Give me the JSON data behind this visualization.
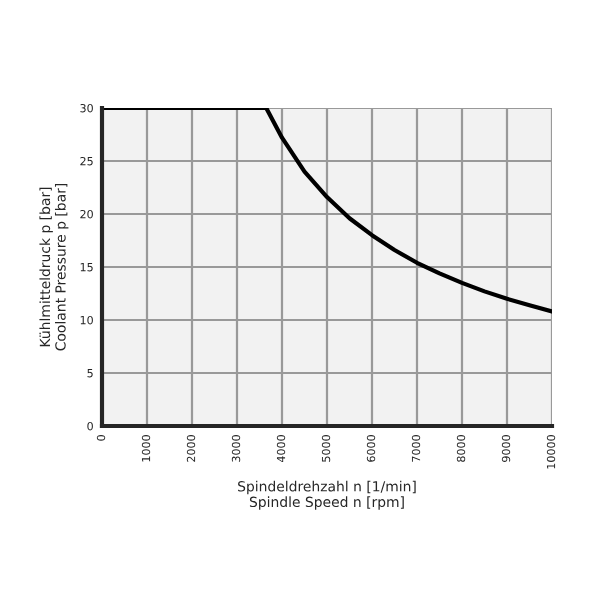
{
  "chart_data": {
    "type": "line",
    "xlabel": "Spindeldrehzahl n [1/min]\nSpindle Speed n [rpm]",
    "ylabel": "Kühlmitteldruck p [bar]\nCoolant Pressure p [bar]",
    "series": [
      {
        "color": "#000000",
        "x": [
          0,
          3650,
          4000,
          4500,
          5000,
          5500,
          6000,
          6500,
          7000,
          7500,
          8000,
          8500,
          9000,
          9500,
          10000
        ],
        "values": [
          30,
          30,
          27.2,
          24,
          21.6,
          19.6,
          18,
          16.6,
          15.4,
          14.4,
          13.5,
          12.7,
          12,
          11.4,
          10.8
        ]
      }
    ],
    "xlim": [
      0,
      10000
    ],
    "xticks": [
      0,
      1000,
      2000,
      3000,
      4000,
      5000,
      6000,
      7000,
      8000,
      9000,
      10000
    ],
    "ylim": [
      0,
      30
    ],
    "yticks": [
      0,
      5,
      10,
      15,
      20,
      25,
      30
    ],
    "grid": true,
    "marker": "none",
    "line_style": "solid"
  }
}
